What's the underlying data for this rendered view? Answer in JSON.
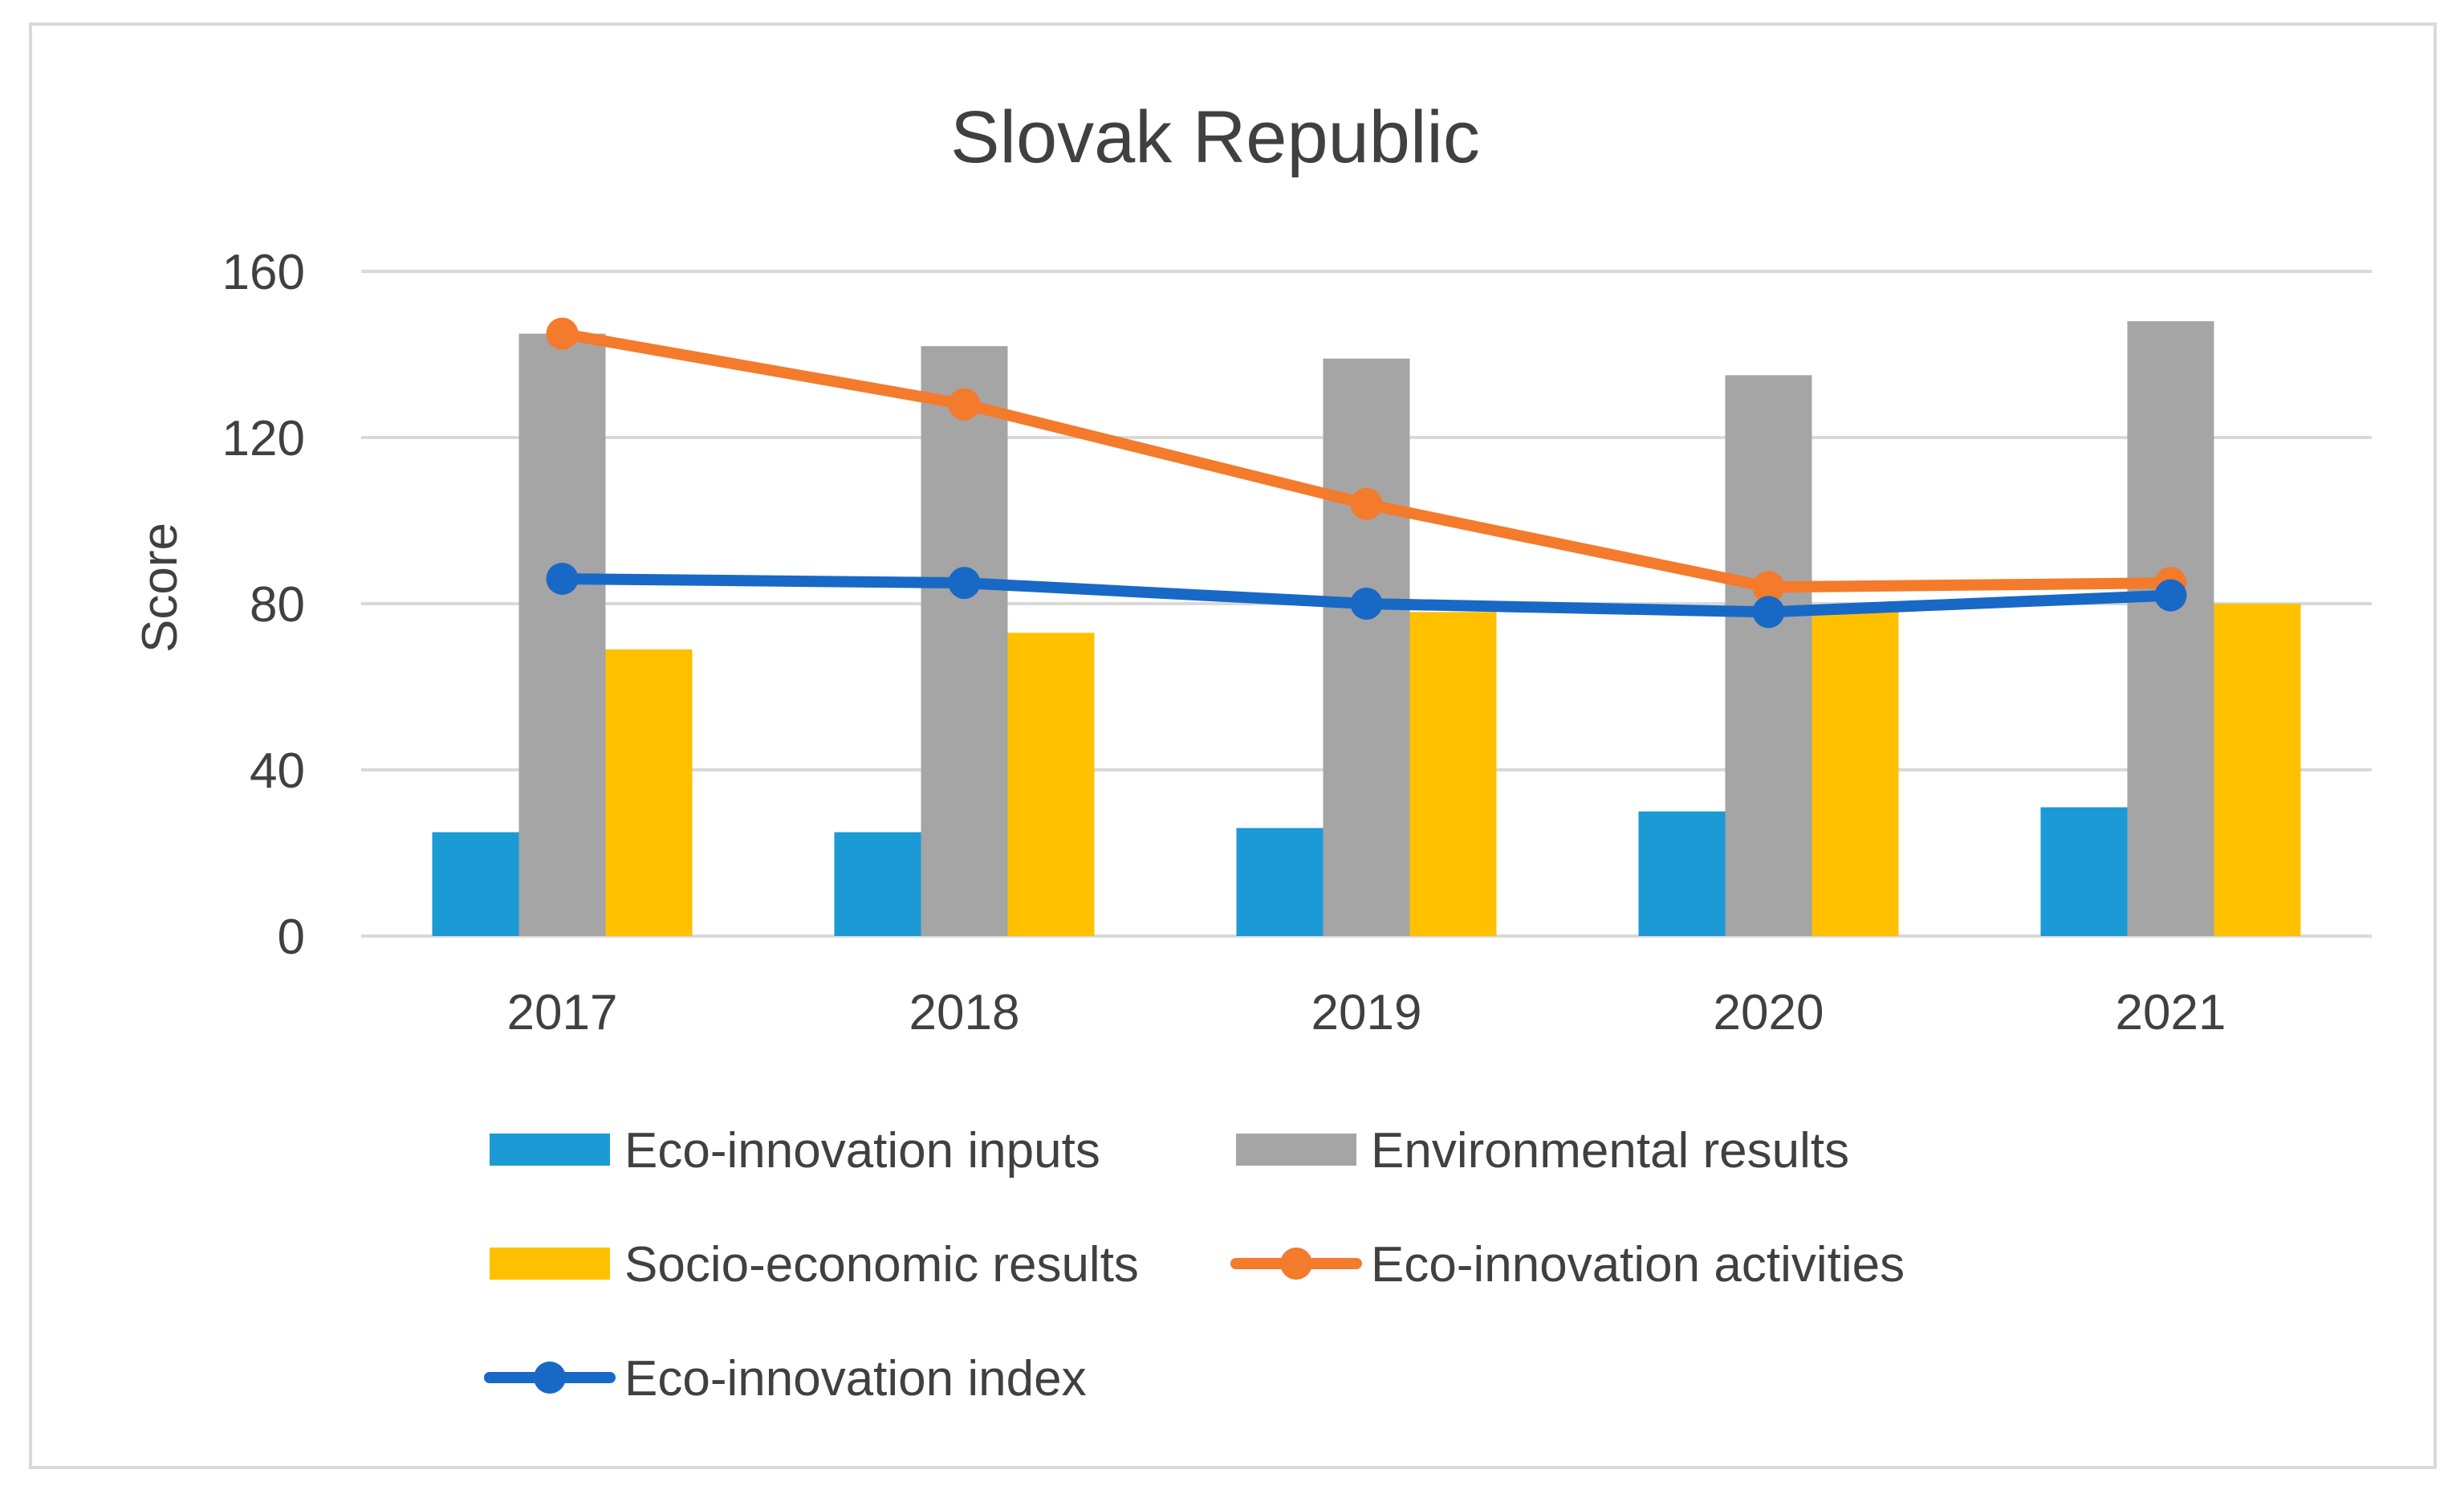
{
  "chart_data": {
    "type": "bar",
    "title": "Slovak Republic",
    "xlabel": "",
    "ylabel": "Score",
    "ylim": [
      0,
      160
    ],
    "yticks": [
      0,
      40,
      80,
      120,
      160
    ],
    "grid": true,
    "legend_position": "bottom",
    "categories": [
      "2017",
      "2018",
      "2019",
      "2020",
      "2021"
    ],
    "series": [
      {
        "name": "Eco-innovation inputs",
        "kind": "bar",
        "color": "#1b9ad6",
        "values": [
          25,
          25,
          26,
          30,
          31
        ]
      },
      {
        "name": "Environmental results",
        "kind": "bar",
        "color": "#a5a5a5",
        "values": [
          145,
          142,
          139,
          135,
          148
        ]
      },
      {
        "name": "Socio-economic results",
        "kind": "bar",
        "color": "#ffc000",
        "values": [
          69,
          73,
          78,
          78,
          80
        ]
      },
      {
        "name": "Eco-innovation activities",
        "kind": "line",
        "color": "#f47a2c",
        "values": [
          145,
          128,
          104,
          84,
          85
        ]
      },
      {
        "name": "Eco-innovation index",
        "kind": "line",
        "color": "#1869c6",
        "values": [
          86,
          85,
          80,
          78,
          82
        ]
      }
    ]
  }
}
